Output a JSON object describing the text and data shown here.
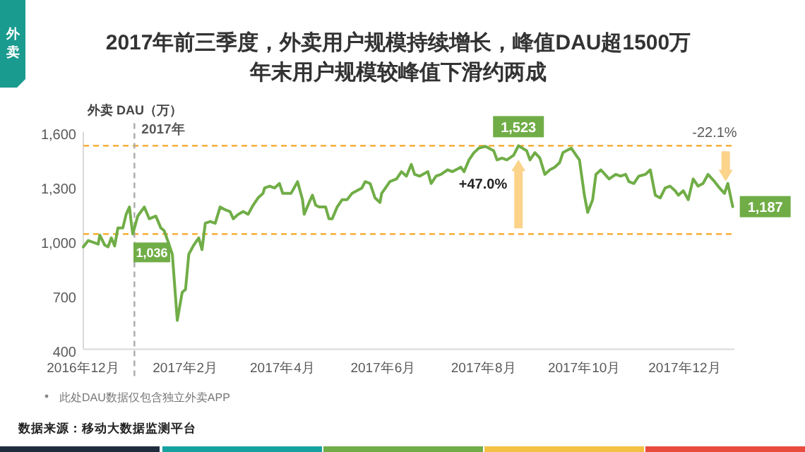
{
  "chart_data": {
    "type": "line",
    "title": "2017年前三季度，外卖用户规模持续增长，峰值DAU超1500万",
    "subtitle": "年末用户规模较峰值下滑约两成",
    "ylabel": "外卖 DAU（万）",
    "color": "#70ad47",
    "x": [
      "2016-12-01",
      "2016-12-04",
      "2016-12-07",
      "2016-12-10",
      "2016-12-11",
      "2016-12-14",
      "2016-12-16",
      "2016-12-18",
      "2016-12-20",
      "2016-12-22",
      "2016-12-25",
      "2016-12-27",
      "2016-12-29",
      "2016-12-30",
      "2016-12-31",
      "2017-01-03",
      "2017-01-07",
      "2017-01-10",
      "2017-01-14",
      "2017-01-17",
      "2017-01-19",
      "2017-01-21",
      "2017-01-24",
      "2017-01-27",
      "2017-01-30",
      "2017-02-01",
      "2017-02-03",
      "2017-02-06",
      "2017-02-09",
      "2017-02-11",
      "2017-02-13",
      "2017-02-16",
      "2017-02-19",
      "2017-02-22",
      "2017-02-25",
      "2017-02-28",
      "2017-03-02",
      "2017-03-05",
      "2017-03-08",
      "2017-03-11",
      "2017-03-14",
      "2017-03-17",
      "2017-03-20",
      "2017-03-21",
      "2017-03-24",
      "2017-03-27",
      "2017-03-30",
      "2017-04-01",
      "2017-04-06",
      "2017-04-10",
      "2017-04-13",
      "2017-04-14",
      "2017-04-17",
      "2017-04-19",
      "2017-04-21",
      "2017-04-23",
      "2017-04-27",
      "2017-04-29",
      "2017-05-01",
      "2017-05-04",
      "2017-05-07",
      "2017-05-10",
      "2017-05-13",
      "2017-05-16",
      "2017-05-19",
      "2017-05-21",
      "2017-05-24",
      "2017-05-27",
      "2017-05-30",
      "2017-05-31",
      "2017-06-05",
      "2017-06-09",
      "2017-06-12",
      "2017-06-15",
      "2017-06-18",
      "2017-06-20",
      "2017-06-23",
      "2017-06-28",
      "2017-06-30",
      "2017-07-03",
      "2017-07-06",
      "2017-07-10",
      "2017-07-13",
      "2017-07-18",
      "2017-07-20",
      "2017-07-23",
      "2017-07-26",
      "2017-07-29",
      "2017-08-02",
      "2017-08-07",
      "2017-08-09",
      "2017-08-12",
      "2017-08-15",
      "2017-08-19",
      "2017-08-22",
      "2017-08-27",
      "2017-08-29",
      "2017-09-01",
      "2017-09-04",
      "2017-09-07",
      "2017-09-10",
      "2017-09-13",
      "2017-09-16",
      "2017-09-18",
      "2017-09-23",
      "2017-09-26",
      "2017-09-28",
      "2017-10-01",
      "2017-10-03",
      "2017-10-06",
      "2017-10-08",
      "2017-10-11",
      "2017-10-16",
      "2017-10-20",
      "2017-10-23",
      "2017-10-26",
      "2017-10-28",
      "2017-10-31",
      "2017-11-03",
      "2017-11-07",
      "2017-11-10",
      "2017-11-13",
      "2017-11-16",
      "2017-11-19",
      "2017-11-22",
      "2017-11-25",
      "2017-11-27",
      "2017-11-30",
      "2017-12-03",
      "2017-12-06",
      "2017-12-09",
      "2017-12-12",
      "2017-12-15",
      "2017-12-19",
      "2017-12-22",
      "2017-12-25",
      "2017-12-27",
      "2017-12-30"
    ],
    "values": [
      965,
      1000,
      990,
      980,
      1030,
      975,
      965,
      1015,
      970,
      1070,
      1070,
      1145,
      1185,
      1105,
      1036,
      1135,
      1185,
      1120,
      1135,
      1070,
      1055,
      1005,
      925,
      560,
      715,
      730,
      925,
      975,
      1015,
      950,
      1095,
      1105,
      1095,
      1185,
      1170,
      1160,
      1120,
      1145,
      1160,
      1145,
      1195,
      1235,
      1260,
      1290,
      1300,
      1290,
      1315,
      1260,
      1260,
      1325,
      1225,
      1145,
      1210,
      1250,
      1195,
      1185,
      1185,
      1120,
      1120,
      1185,
      1225,
      1225,
      1260,
      1275,
      1290,
      1325,
      1315,
      1235,
      1210,
      1260,
      1325,
      1340,
      1380,
      1355,
      1420,
      1365,
      1355,
      1380,
      1315,
      1355,
      1365,
      1390,
      1380,
      1405,
      1380,
      1445,
      1485,
      1510,
      1520,
      1495,
      1445,
      1455,
      1445,
      1470,
      1523,
      1495,
      1445,
      1485,
      1455,
      1365,
      1390,
      1405,
      1430,
      1485,
      1510,
      1470,
      1445,
      1250,
      1155,
      1225,
      1365,
      1390,
      1340,
      1365,
      1355,
      1365,
      1325,
      1315,
      1355,
      1365,
      1390,
      1250,
      1235,
      1290,
      1300,
      1275,
      1250,
      1275,
      1225,
      1340,
      1300,
      1315,
      1365,
      1325,
      1290,
      1260,
      1315,
      1187
    ],
    "value_labels": [
      null,
      null,
      null,
      null,
      null,
      null,
      null,
      null,
      null,
      null,
      null,
      null,
      null,
      null,
      "1,036",
      null,
      null,
      null,
      null,
      null,
      null,
      null,
      null,
      null,
      null,
      null,
      null,
      null,
      null,
      null,
      null,
      null,
      null,
      null,
      null,
      null,
      null,
      null,
      null,
      null,
      null,
      null,
      null,
      null,
      null,
      null,
      null,
      null,
      null,
      null,
      null,
      null,
      null,
      null,
      null,
      null,
      null,
      null,
      null,
      null,
      null,
      null,
      null,
      null,
      null,
      null,
      null,
      null,
      null,
      null,
      null,
      null,
      null,
      null,
      null,
      null,
      null,
      null,
      null,
      null,
      null,
      null,
      null,
      null,
      null,
      null,
      null,
      null,
      null,
      null,
      null,
      null,
      null,
      null,
      "1,523",
      null,
      null,
      null,
      null,
      null,
      null,
      null,
      null,
      null,
      null,
      null,
      null,
      null,
      null,
      null,
      null,
      null,
      null,
      null,
      null,
      null,
      null,
      null,
      null,
      null,
      null,
      null,
      null,
      null,
      null,
      null,
      null,
      null,
      null,
      null,
      null,
      null,
      null,
      null,
      null,
      null,
      null,
      "1,187"
    ],
    "xlim": [
      "2016-12-01",
      "2017-12-31"
    ],
    "xticks": [
      {
        "value": "2016-12-01",
        "label": "2016年12月"
      },
      {
        "value": "2017-02-01",
        "label": "2017年2月"
      },
      {
        "value": "2017-04-01",
        "label": "2017年4月"
      },
      {
        "value": "2017-06-01",
        "label": "2017年6月"
      },
      {
        "value": "2017-08-01",
        "label": "2017年8月"
      },
      {
        "value": "2017-10-01",
        "label": "2017年10月"
      },
      {
        "value": "2017-12-01",
        "label": "2017年12月"
      }
    ],
    "ylim": [
      400,
      1600
    ],
    "yticks": [
      400,
      700,
      {
        "value": 1000,
        "label": "1,000"
      },
      {
        "value": 1300,
        "label": "1,300"
      },
      {
        "value": 1600,
        "label": "1,600"
      }
    ],
    "ref_lines": [
      {
        "axis": "y",
        "value": 1036,
        "color": "#f5a623",
        "line_style": "dashed"
      },
      {
        "axis": "y",
        "value": 1523,
        "color": "#f5a623",
        "line_style": "dashed"
      },
      {
        "axis": "x",
        "value": "2017-01-01",
        "label": "2017年",
        "color": "#aaaaaa",
        "line_style": "dashed"
      }
    ],
    "annotations": [
      "外卖",
      "此处DAU数据仅包含独立外卖APP",
      "数据来源：移动大数据监测平台",
      "+47.0%",
      "-22.1%"
    ],
    "grid": false,
    "legend": false,
    "marker": "none"
  }
}
